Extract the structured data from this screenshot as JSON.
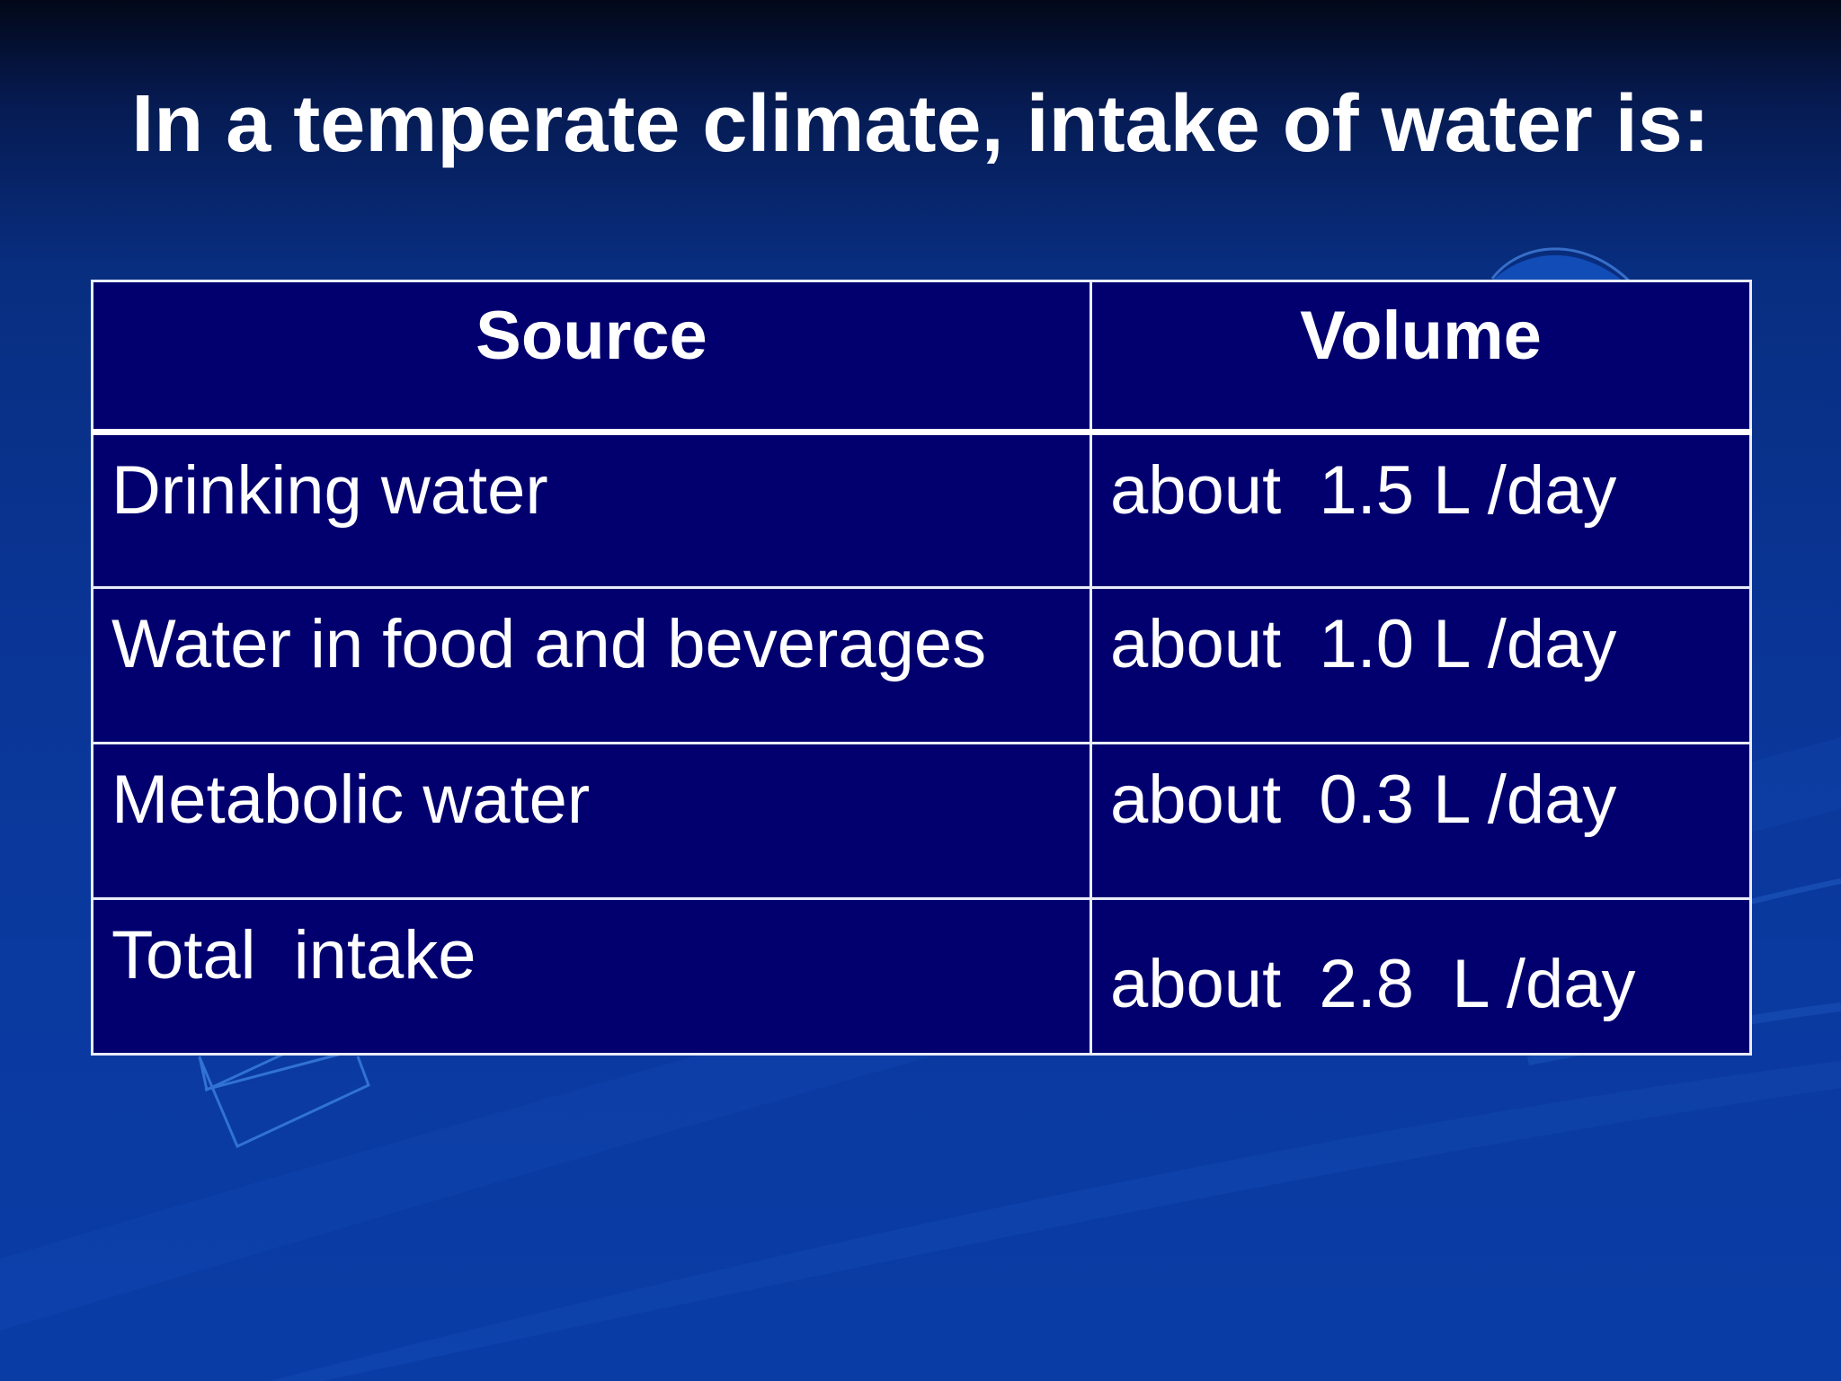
{
  "slide": {
    "title": "In a temperate climate, intake of water is:"
  },
  "table": {
    "headers": {
      "source": "Source",
      "volume": "Volume"
    },
    "rows": [
      {
        "source": "Drinking water",
        "volume": "about  1.5 L /day"
      },
      {
        "source": "Water in food and beverages",
        "volume": "about  1.0 L /day"
      },
      {
        "source": "Metabolic water",
        "volume": "about  0.3 L /day"
      },
      {
        "source": "Total  intake",
        "volume": "about  2.8  L /day"
      }
    ]
  },
  "colors": {
    "table_fill": "#02006f",
    "table_border": "#e8ecf8",
    "text": "#ffffff",
    "background_top": "#020818",
    "background_bottom": "#0a3ca6"
  }
}
